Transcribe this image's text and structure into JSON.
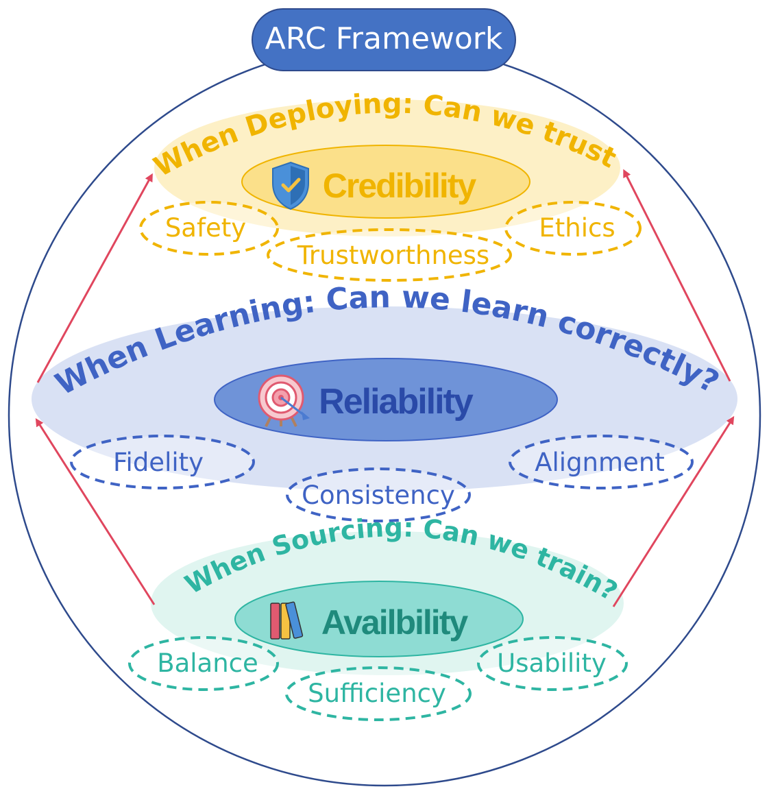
{
  "title": "ARC Framework",
  "colors": {
    "title_bg": "#4472c4",
    "outer_circle": "#2e4a8c",
    "arrow": "#e0465e",
    "credibility": "#f0b400",
    "credibility_band": "#fdf0c6",
    "credibility_core": "#fbe08a",
    "reliability": "#3f63c4",
    "reliability_band": "#d9e1f4",
    "reliability_core": "#6f93d8",
    "reliability_text": "#2a4aa8",
    "availability": "#2eb5a2",
    "availability_band": "#e0f5f0",
    "availability_core": "#8edcd3",
    "availability_text": "#1f8a7c"
  },
  "layers": {
    "deploying": {
      "question": "When Deploying: Can we trust?",
      "core": "Credibility",
      "icon": "shield-check-icon",
      "aspects": [
        "Safety",
        "Trustworthness",
        "Ethics"
      ]
    },
    "learning": {
      "question": "When Learning: Can we learn correctly?",
      "core": "Reliability",
      "icon": "target-icon",
      "aspects": [
        "Fidelity",
        "Consistency",
        "Alignment"
      ]
    },
    "sourcing": {
      "question": "When Sourcing: Can we train?",
      "core": "Availbility",
      "icon": "books-icon",
      "aspects": [
        "Balance",
        "Sufficiency",
        "Usability"
      ]
    }
  }
}
